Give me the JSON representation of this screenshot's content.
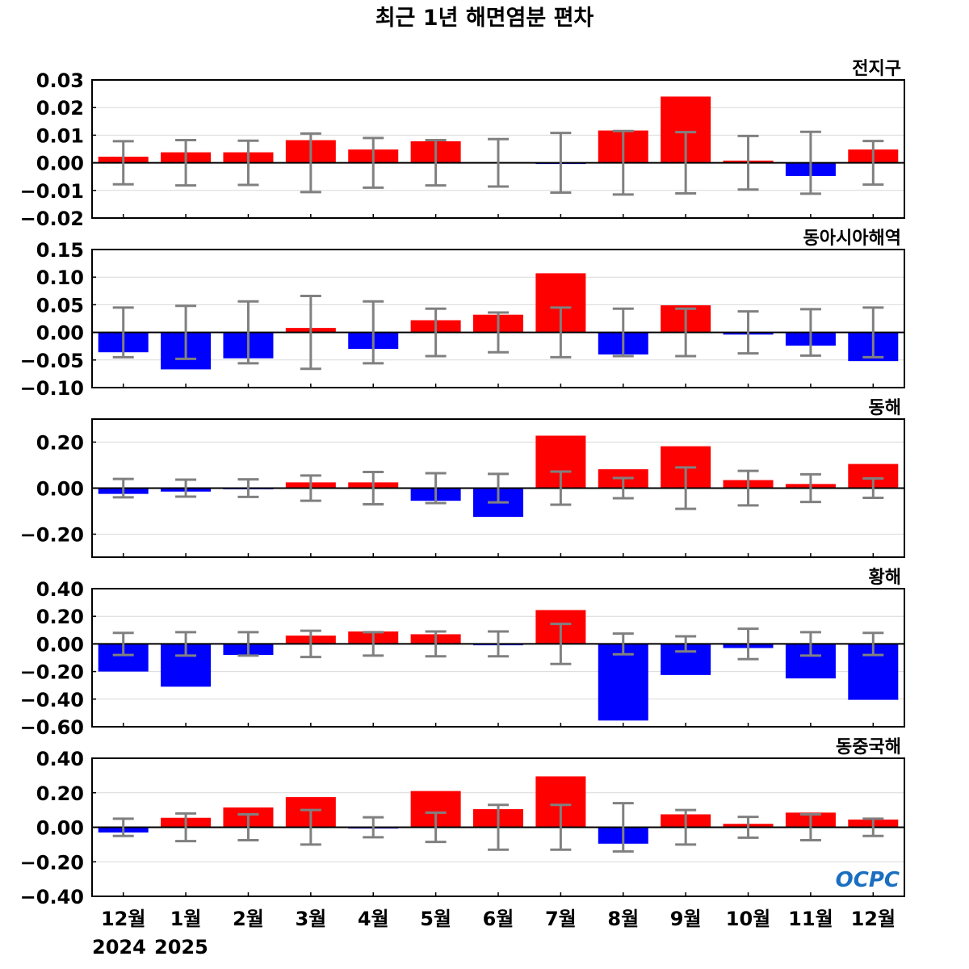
{
  "chart_data": {
    "type": "bar",
    "title": "최근 1년 해면염분 편차",
    "categories": [
      "12월",
      "1월",
      "2월",
      "3월",
      "4월",
      "5월",
      "6월",
      "7월",
      "8월",
      "9월",
      "10월",
      "11월",
      "12월"
    ],
    "year_labels": [
      "2024",
      "2025"
    ],
    "logo": "OCPC",
    "colors": {
      "positive": "#ff0000",
      "negative": "#0000ff",
      "error_bar": "#808080",
      "zero_line": "#000000",
      "grid": "#d9d9d9"
    },
    "grid": true,
    "panels": [
      {
        "name": "전지구",
        "ylim": [
          -0.02,
          0.03
        ],
        "yticks": [
          "0.03",
          "0.02",
          "0.01",
          "0.00",
          "−0.01",
          "−0.02"
        ],
        "ytick_values": [
          0.03,
          0.02,
          0.01,
          0.0,
          -0.01,
          -0.02
        ],
        "values": [
          0.0022,
          0.0038,
          0.0038,
          0.0082,
          0.0048,
          0.0078,
          0.0002,
          -0.0003,
          0.0117,
          0.024,
          0.0008,
          -0.0048,
          0.0048
        ],
        "error": [
          0.0078,
          0.0082,
          0.008,
          0.0106,
          0.009,
          0.0082,
          0.0086,
          0.0108,
          0.0115,
          0.0111,
          0.0097,
          0.0112,
          0.0079
        ]
      },
      {
        "name": "동아시아해역",
        "ylim": [
          -0.1,
          0.15
        ],
        "yticks": [
          "0.15",
          "0.10",
          "0.05",
          "0.00",
          "−0.05",
          "−0.10"
        ],
        "ytick_values": [
          0.15,
          0.1,
          0.05,
          0.0,
          -0.05,
          -0.1
        ],
        "values": [
          -0.036,
          -0.067,
          -0.047,
          0.008,
          -0.03,
          0.022,
          0.032,
          0.107,
          -0.04,
          0.049,
          -0.004,
          -0.024,
          -0.052
        ],
        "error": [
          0.045,
          0.048,
          0.056,
          0.066,
          0.056,
          0.043,
          0.036,
          0.045,
          0.043,
          0.043,
          0.038,
          0.042,
          0.045
        ]
      },
      {
        "name": "동해",
        "ylim": [
          -0.3,
          0.3
        ],
        "yticks": [
          "0.20",
          "0.00",
          "−0.20"
        ],
        "ytick_values": [
          0.2,
          0.0,
          -0.2
        ],
        "values": [
          -0.025,
          -0.015,
          -0.003,
          0.025,
          0.025,
          -0.055,
          -0.125,
          0.228,
          0.082,
          0.182,
          0.035,
          0.018,
          0.105
        ],
        "error": [
          0.04,
          0.037,
          0.038,
          0.055,
          0.07,
          0.065,
          0.062,
          0.072,
          0.044,
          0.09,
          0.075,
          0.06,
          0.042
        ]
      },
      {
        "name": "황해",
        "ylim": [
          -0.6,
          0.4
        ],
        "yticks": [
          "0.40",
          "0.20",
          "0.00",
          "−0.20",
          "−0.40",
          "−0.60"
        ],
        "ytick_values": [
          0.4,
          0.2,
          0.0,
          -0.2,
          -0.4,
          -0.6
        ],
        "values": [
          -0.2,
          -0.31,
          -0.08,
          0.06,
          0.09,
          0.07,
          -0.01,
          0.245,
          -0.555,
          -0.225,
          -0.03,
          -0.25,
          -0.405
        ],
        "error": [
          0.08,
          0.085,
          0.085,
          0.095,
          0.085,
          0.09,
          0.09,
          0.145,
          0.075,
          0.055,
          0.11,
          0.085,
          0.08
        ]
      },
      {
        "name": "동중국해",
        "ylim": [
          -0.4,
          0.4
        ],
        "yticks": [
          "0.40",
          "0.20",
          "0.00",
          "−0.20",
          "−0.40"
        ],
        "ytick_values": [
          0.4,
          0.2,
          0.0,
          -0.2,
          -0.4
        ],
        "values": [
          -0.03,
          0.055,
          0.115,
          0.175,
          -0.005,
          0.21,
          0.105,
          0.295,
          -0.095,
          0.075,
          0.02,
          0.085,
          0.045
        ],
        "error": [
          0.05,
          0.08,
          0.075,
          0.1,
          0.058,
          0.085,
          0.13,
          0.13,
          0.14,
          0.1,
          0.06,
          0.075,
          0.05
        ]
      }
    ]
  }
}
